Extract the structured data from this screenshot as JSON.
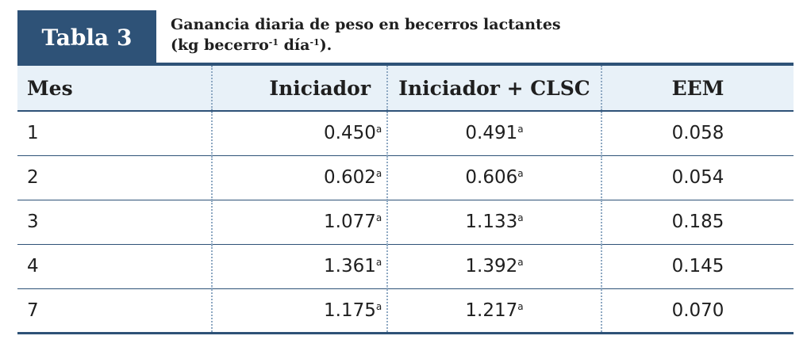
{
  "tag": "Tabla 3",
  "caption": {
    "line1": "Ganancia diaria de peso en becerros lactantes",
    "line2_prefix": "(kg becerro",
    "sup1": "-1",
    "line2_mid": " día",
    "sup2": "-1",
    "line2_suffix": ")."
  },
  "headers": [
    "Mes",
    "Iniciador",
    "Iniciador + CLSC",
    "EEM"
  ],
  "rows": [
    {
      "mes": "1",
      "iniciador": "0.450",
      "iniciador_sup": "a",
      "clsc": "0.491",
      "clsc_sup": "a",
      "eem": "0.058"
    },
    {
      "mes": "2",
      "iniciador": "0.602",
      "iniciador_sup": "a",
      "clsc": "0.606",
      "clsc_sup": "a",
      "eem": "0.054"
    },
    {
      "mes": "3",
      "iniciador": "1.077",
      "iniciador_sup": "a",
      "clsc": "1.133",
      "clsc_sup": "a",
      "eem": "0.185"
    },
    {
      "mes": "4",
      "iniciador": "1.361",
      "iniciador_sup": "a",
      "clsc": "1.392",
      "clsc_sup": "a",
      "eem": "0.145"
    },
    {
      "mes": "7",
      "iniciador": "1.175",
      "iniciador_sup": "a",
      "clsc": "1.217",
      "clsc_sup": "a",
      "eem": "0.070"
    }
  ],
  "colors": {
    "accent": "#2e5277",
    "header_bg": "#e8f1f8",
    "divider": "#8ea8c2"
  }
}
